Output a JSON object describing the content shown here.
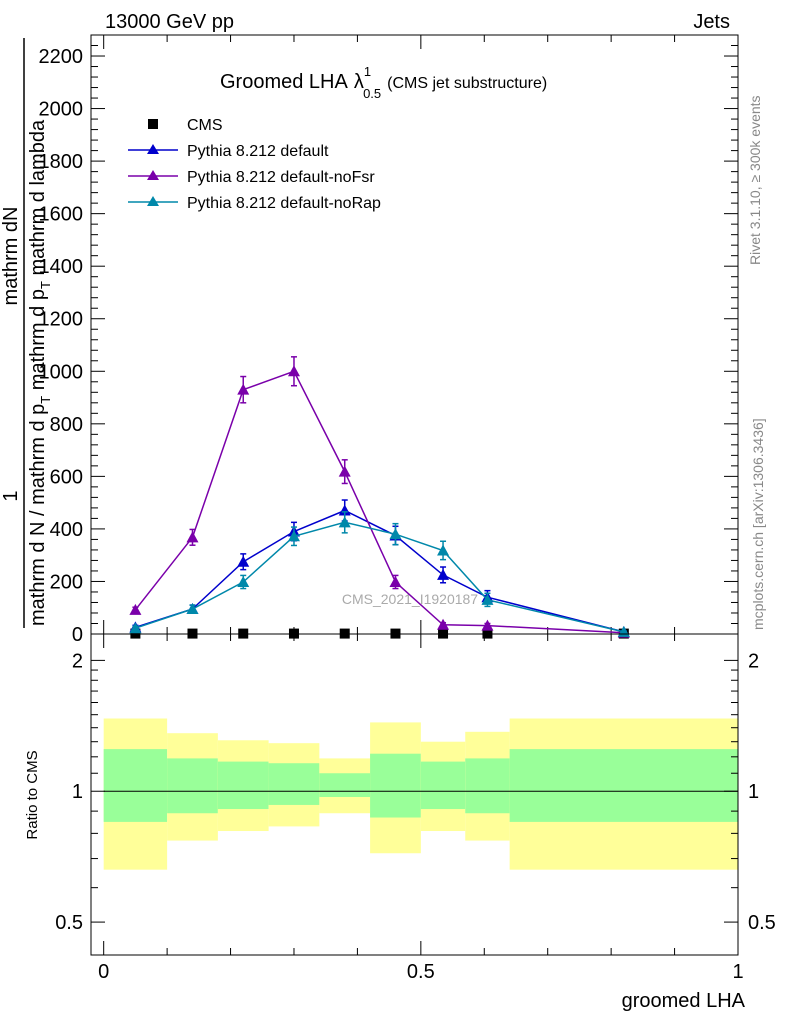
{
  "header": {
    "energy": "13000 GeV pp",
    "process": "Jets"
  },
  "side_labels": {
    "rivet": "Rivet 3.1.10, ≥ 300k events",
    "mcplots": "mcplots.cern.ch [arXiv:1306.3436]"
  },
  "colors": {
    "cms": "#000000",
    "default": "#0000cc",
    "noFsr": "#7a00aa",
    "noRap": "#0088aa",
    "band_inner": "#99ff99",
    "band_outer": "#ffff99"
  },
  "chart_data": [
    {
      "type": "line",
      "title_main": "Groomed LHA",
      "title_symbol": "λ",
      "title_sup": "1",
      "title_sub": "0.5",
      "title_note": "(CMS jet substructure)",
      "ylabel_one": "1",
      "ylabel_num": "mathrm dN",
      "ylabel_den": "mathrm d N / mathrm d p_T mathrm d p_T mathrm d lambda",
      "ylabel_den_display": "mathrm d N / mathrm d p",
      "ylabel_den_sub": "T",
      "ylabel_den_tail": "mathrm d p",
      "ylabel_den_tail_sub": "T",
      "ylabel_den_end": "mathrm d lambda",
      "watermark": "CMS_2021_I1920187",
      "ylim": [
        0,
        2280
      ],
      "xlim": [
        -0.02,
        1.0
      ],
      "y_ticks": [
        0,
        200,
        400,
        600,
        800,
        1000,
        1200,
        1400,
        1600,
        1800,
        2000,
        2200
      ],
      "y_tick_labels": [
        "0",
        "200",
        "400",
        "600",
        "800",
        "1000",
        "1200",
        "1400",
        "1600",
        "1800",
        "2000",
        "2200"
      ],
      "legend": [
        "CMS",
        "Pythia 8.212 default",
        "Pythia 8.212 default-noFsr",
        "Pythia 8.212 default-noRap"
      ],
      "series": [
        {
          "name": "CMS",
          "x": [
            0.05,
            0.14,
            0.22,
            0.3,
            0.38,
            0.46,
            0.535,
            0.605,
            0.82
          ],
          "y": [
            1.6,
            1.6,
            1.6,
            1.6,
            1.6,
            1.6,
            1.6,
            1.6,
            1.6
          ]
        },
        {
          "name": "Pythia 8.212 default",
          "x": [
            0.05,
            0.14,
            0.22,
            0.3,
            0.38,
            0.46,
            0.535,
            0.605,
            0.82
          ],
          "y": [
            25,
            95,
            275,
            390,
            470,
            375,
            225,
            140,
            8
          ],
          "err": [
            8,
            15,
            30,
            35,
            40,
            35,
            30,
            25,
            3
          ]
        },
        {
          "name": "Pythia 8.212 default-noFsr",
          "x": [
            0.05,
            0.14,
            0.22,
            0.3,
            0.38,
            0.46,
            0.535,
            0.605,
            0.82
          ],
          "y": [
            92,
            368,
            930,
            1000,
            618,
            198,
            35,
            32,
            5
          ],
          "err": [
            10,
            30,
            50,
            55,
            45,
            25,
            8,
            8,
            3
          ]
        },
        {
          "name": "Pythia 8.212 default-noRap",
          "x": [
            0.05,
            0.14,
            0.22,
            0.3,
            0.38,
            0.46,
            0.535,
            0.605,
            0.82
          ],
          "y": [
            22,
            95,
            198,
            372,
            425,
            380,
            318,
            130,
            8
          ],
          "err": [
            8,
            15,
            25,
            35,
            40,
            40,
            35,
            25,
            3
          ]
        }
      ]
    },
    {
      "type": "area",
      "ylabel": "Ratio to CMS",
      "xlabel": "groomed LHA",
      "scale": "log",
      "ylim": [
        0.42,
        2.3
      ],
      "x_ticks": [
        0,
        0.5,
        1
      ],
      "x_tick_labels": [
        "0",
        "0.5",
        "1"
      ],
      "y_ticks": [
        0.5,
        1,
        2
      ],
      "y_tick_labels": [
        "0.5",
        "1",
        "2"
      ],
      "reference": 1.0,
      "bins": [
        0.0,
        0.1,
        0.18,
        0.26,
        0.34,
        0.42,
        0.5,
        0.57,
        0.64,
        1.0
      ],
      "band_inner_low": [
        0.85,
        0.89,
        0.91,
        0.93,
        0.97,
        0.87,
        0.91,
        0.89,
        0.85
      ],
      "band_inner_high": [
        1.25,
        1.19,
        1.17,
        1.16,
        1.1,
        1.22,
        1.17,
        1.19,
        1.25
      ],
      "band_outer_low": [
        0.66,
        0.77,
        0.81,
        0.83,
        0.89,
        0.72,
        0.81,
        0.77,
        0.66
      ],
      "band_outer_high": [
        1.47,
        1.36,
        1.31,
        1.29,
        1.19,
        1.44,
        1.3,
        1.37,
        1.47
      ]
    }
  ]
}
